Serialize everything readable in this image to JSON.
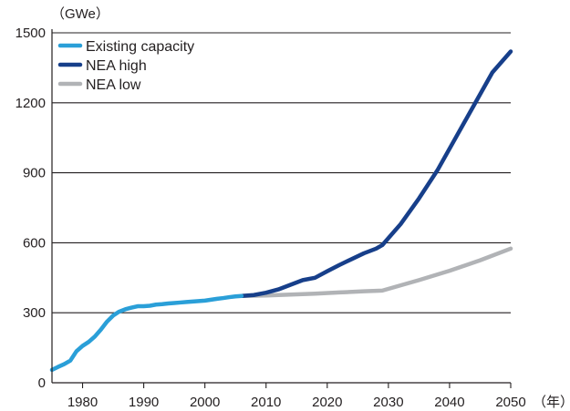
{
  "chart_data": {
    "type": "line",
    "ylabel": "（GWe）",
    "xlabel": "（年）",
    "xlim": [
      1975,
      2050
    ],
    "ylim": [
      0,
      1500
    ],
    "x_ticks": [
      1980,
      1990,
      2000,
      2010,
      2020,
      2030,
      2040,
      2050
    ],
    "y_ticks": [
      0,
      300,
      600,
      900,
      1200,
      1500
    ],
    "grid": "horizontal",
    "legend_position": "top-left",
    "series": [
      {
        "name": "Existing capacity",
        "color": "#2a9fd8",
        "x": [
          1975,
          1976,
          1977,
          1978,
          1979,
          1980,
          1981,
          1982,
          1983,
          1984,
          1985,
          1986,
          1987,
          1988,
          1989,
          1990,
          1991,
          1992,
          1993,
          1994,
          1995,
          1996,
          1997,
          1998,
          1999,
          2000,
          2001,
          2002,
          2003,
          2004,
          2005,
          2006
        ],
        "y": [
          55,
          68,
          80,
          95,
          135,
          158,
          175,
          198,
          228,
          262,
          288,
          305,
          315,
          322,
          328,
          328,
          330,
          335,
          337,
          340,
          342,
          344,
          346,
          348,
          350,
          352,
          356,
          360,
          363,
          367,
          370,
          372
        ]
      },
      {
        "name": "NEA high",
        "color": "#173f8a",
        "x": [
          2006,
          2008,
          2010,
          2012,
          2014,
          2016,
          2018,
          2020,
          2022,
          2024,
          2026,
          2028,
          2029,
          2032,
          2035,
          2038,
          2041,
          2044,
          2047,
          2050
        ],
        "y": [
          372,
          376,
          386,
          400,
          420,
          440,
          450,
          478,
          505,
          530,
          555,
          575,
          590,
          680,
          790,
          910,
          1050,
          1190,
          1330,
          1420
        ]
      },
      {
        "name": "NEA low",
        "color": "#b1b3b6",
        "x": [
          2006,
          2010,
          2014,
          2018,
          2022,
          2026,
          2029,
          2035,
          2040,
          2045,
          2050
        ],
        "y": [
          372,
          374,
          378,
          382,
          387,
          392,
          395,
          440,
          480,
          525,
          575
        ]
      }
    ]
  }
}
